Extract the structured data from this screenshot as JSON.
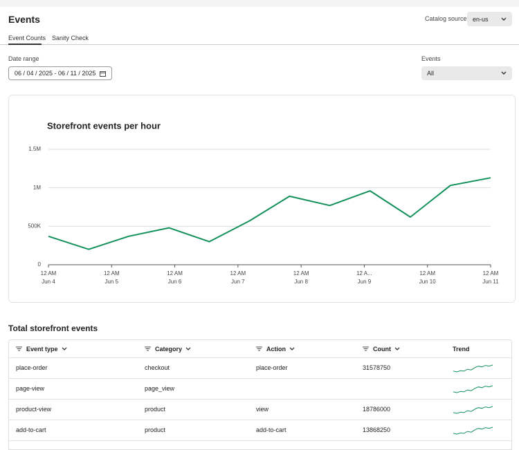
{
  "header": {
    "title": "Events",
    "catalog_label": "Catalog source",
    "catalog_value": "en-us"
  },
  "tabs": [
    "Event Counts",
    "Sanity Check"
  ],
  "filters": {
    "date_label": "Date range",
    "date_value": "06 / 04 / 2025 - 06 / 11 / 2025",
    "events_label": "Events",
    "events_value": "All"
  },
  "chart_data": {
    "type": "line",
    "title": "Storefront events per hour",
    "x": [
      0,
      15.3,
      30.5,
      45.8,
      61.1,
      76.4,
      91.6,
      106.9,
      122.2,
      137.5,
      152.7,
      168
    ],
    "values": [
      370000,
      200000,
      370000,
      480000,
      300000,
      570000,
      890000,
      770000,
      960000,
      620000,
      1030000,
      1130000
    ],
    "color": "#12905a",
    "xlim": [
      0,
      168
    ],
    "xticks": [
      {
        "value": 0,
        "label": "12 AM\nJun 4"
      },
      {
        "value": 24,
        "label": "12 AM\nJun 5"
      },
      {
        "value": 48,
        "label": "12 AM\nJun 6"
      },
      {
        "value": 72,
        "label": "12 AM\nJun 7"
      },
      {
        "value": 96,
        "label": "12 AM\nJun 8"
      },
      {
        "value": 120,
        "label": "12 A...\nJun 9"
      },
      {
        "value": 144,
        "label": "12 AM\nJun 10"
      },
      {
        "value": 168,
        "label": "12 AM\nJun 11"
      }
    ],
    "ylim": [
      0,
      1500000
    ],
    "yticks": [
      0,
      {
        "value": 500000,
        "label": "500K"
      },
      {
        "value": 1000000,
        "label": "1M"
      },
      {
        "value": 1500000,
        "label": "1.5M"
      }
    ],
    "grid": true
  },
  "table": {
    "title": "Total storefront events",
    "columns": [
      "Event type",
      "Category",
      "Action",
      "Count",
      "Trend"
    ],
    "rows": [
      {
        "event_type": "place-order",
        "category": "checkout",
        "action": "place-order",
        "count": "31578750",
        "trend": [
          2,
          1.6,
          2.2,
          2,
          3,
          2.6,
          3.8,
          4.6,
          4.2,
          5,
          4.6,
          5.2
        ]
      },
      {
        "event_type": "page-view",
        "category": "page_view",
        "action": null,
        "count": null,
        "trend": [
          2,
          1.6,
          2.2,
          2,
          3,
          2.6,
          3.8,
          4.6,
          4.2,
          5,
          4.6,
          5.2
        ]
      },
      {
        "event_type": "product-view",
        "category": "product",
        "action": "view",
        "count": "18786000",
        "trend": [
          2,
          1.6,
          2.2,
          2,
          3,
          2.6,
          3.8,
          4.6,
          4.2,
          5,
          4.6,
          5.2
        ]
      },
      {
        "event_type": "add-to-cart",
        "category": "product",
        "action": "add-to-cart",
        "count": "13868250",
        "trend": [
          2,
          1.6,
          2.2,
          2,
          3,
          2.6,
          3.8,
          4.6,
          4.2,
          5,
          4.6,
          5.2
        ]
      }
    ]
  }
}
